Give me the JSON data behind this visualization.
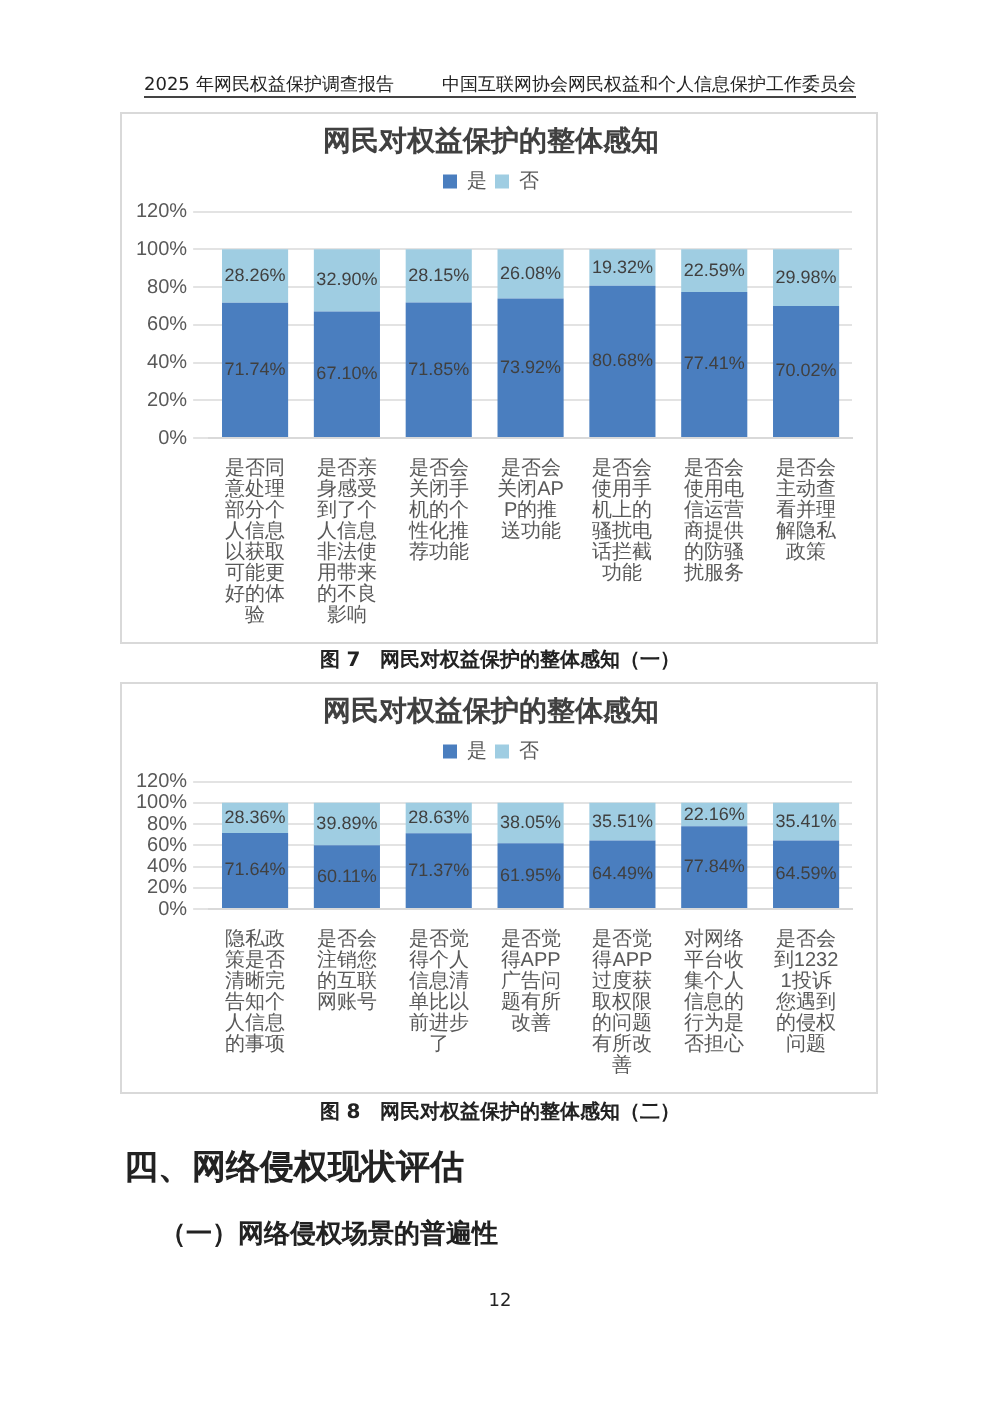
{
  "chart_data": [
    {
      "type": "bar",
      "title": "网民对权益保护的整体感知",
      "stacked": true,
      "legend": "top",
      "grid": "y",
      "categories": [
        "是否同意处理部分个人信息以获取可能更好的体验",
        "是否亲身感受到了个人信息非法使用带来的不良影响",
        "是否会关闭手机的个性化推荐功能",
        "是否会关闭APP的推送功能",
        "是否会使用手机上的骚扰电话拦截功能",
        "是否会使用电信运营商提供的防骚扰服务",
        "是否会主动查看并理解隐私政策"
      ],
      "series": [
        {
          "name": "是",
          "color": "#4a7ebf",
          "values": [
            71.74,
            67.1,
            71.85,
            73.92,
            80.68,
            77.41,
            70.02
          ],
          "value_labels": [
            "71.74%",
            "67.10%",
            "71.85%",
            "73.92%",
            "80.68%",
            "77.41%",
            "70.02%"
          ]
        },
        {
          "name": "否",
          "color": "#9fcde2",
          "values": [
            28.26,
            32.9,
            28.15,
            26.08,
            19.32,
            22.59,
            29.98
          ],
          "value_labels": [
            "28.26%",
            "32.90%",
            "28.15%",
            "26.08%",
            "19.32%",
            "22.59%",
            "29.98%"
          ]
        }
      ],
      "ylim": [
        0,
        120
      ],
      "yticks": [
        {
          "value": 0,
          "label": "0%"
        },
        {
          "value": 20,
          "label": "20%"
        },
        {
          "value": 40,
          "label": "40%"
        },
        {
          "value": 60,
          "label": "60%"
        },
        {
          "value": 80,
          "label": "80%"
        },
        {
          "value": 100,
          "label": "100%"
        },
        {
          "value": 120,
          "label": "120%"
        }
      ],
      "annotations": [
        "2025 年网民权益保护调查报告",
        "中国互联网协会网民权益和个人信息保护工作委员会",
        "图 7　网民对权益保护的整体感知（一）"
      ]
    },
    {
      "type": "bar",
      "title": "网民对权益保护的整体感知",
      "stacked": true,
      "legend": "top",
      "grid": "y",
      "categories": [
        "隐私政策是否清晰完告知个人信息的事项",
        "是否会注销您的互联网账号",
        "是否觉得个人信息清单比以前进步了",
        "是否觉得APP广告问题有所改善",
        "是否觉得APP过度获取权限的问题有所改善",
        "对网络平台收集个人信息的行为是否担心",
        "是否会到12321投诉您遇到的侵权问题"
      ],
      "series": [
        {
          "name": "是",
          "color": "#4a7ebf",
          "values": [
            71.64,
            60.11,
            71.37,
            61.95,
            64.49,
            77.84,
            64.59
          ],
          "value_labels": [
            "71.64%",
            "60.11%",
            "71.37%",
            "61.95%",
            "64.49%",
            "77.84%",
            "64.59%"
          ]
        },
        {
          "name": "否",
          "color": "#9fcde2",
          "values": [
            28.36,
            39.89,
            28.63,
            38.05,
            35.51,
            22.16,
            35.41
          ],
          "value_labels": [
            "28.36%",
            "39.89%",
            "28.63%",
            "38.05%",
            "35.51%",
            "22.16%",
            "35.41%"
          ]
        }
      ],
      "ylim": [
        0,
        120
      ],
      "yticks": [
        {
          "value": 0,
          "label": "0%"
        },
        {
          "value": 20,
          "label": "20%"
        },
        {
          "value": 40,
          "label": "40%"
        },
        {
          "value": 60,
          "label": "60%"
        },
        {
          "value": 80,
          "label": "80%"
        },
        {
          "value": 100,
          "label": "100%"
        },
        {
          "value": 120,
          "label": "120%"
        }
      ],
      "annotations": [
        "图 8　网民对权益保护的整体感知（二）",
        "四、网络侵权现状评估",
        "（一）网络侵权场景的普遍性",
        "12"
      ]
    }
  ]
}
